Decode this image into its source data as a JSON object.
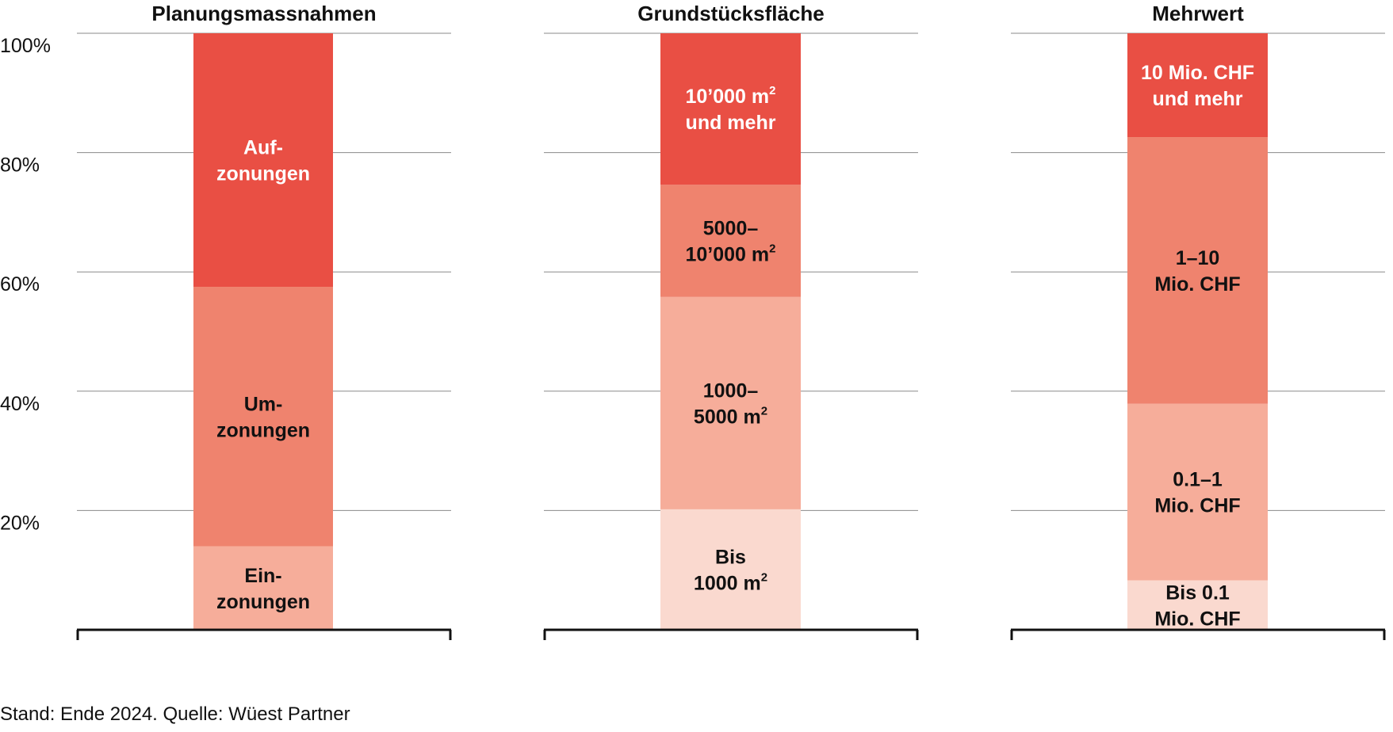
{
  "chart_data": {
    "type": "bar",
    "stacked": true,
    "unit": "%",
    "ylim": [
      0,
      100
    ],
    "yticks": [
      "20%",
      "40%",
      "60%",
      "80%",
      "100%"
    ],
    "grid": true,
    "panels": [
      {
        "title": "Planungsmassnahmen",
        "segments": [
          {
            "lines": [
              [
                "Ein-"
              ],
              [
                "zonungen"
              ]
            ],
            "from": 0,
            "to": 14,
            "color": "#f6ad9a",
            "text_color": "#111111"
          },
          {
            "lines": [
              [
                "Um-"
              ],
              [
                "zonungen"
              ]
            ],
            "from": 14,
            "to": 57.5,
            "color": "#ef836e",
            "text_color": "#111111"
          },
          {
            "lines": [
              [
                "Auf-"
              ],
              [
                "zonungen"
              ]
            ],
            "from": 57.5,
            "to": 100,
            "color": "#e94f44",
            "text_color": "#ffffff"
          }
        ]
      },
      {
        "title": "Grundstücksfläche",
        "segments": [
          {
            "lines": [
              [
                "Bis"
              ],
              [
                "1000 m",
                "2"
              ]
            ],
            "from": 0,
            "to": 20.2,
            "color": "#fad9cf",
            "text_color": "#111111"
          },
          {
            "lines": [
              [
                "1000–"
              ],
              [
                "5000 m",
                "2"
              ]
            ],
            "from": 20.2,
            "to": 55.8,
            "color": "#f6ad9a",
            "text_color": "#111111"
          },
          {
            "lines": [
              [
                "5000–"
              ],
              [
                "10’000 m",
                "2"
              ]
            ],
            "from": 55.8,
            "to": 74.6,
            "color": "#ef836e",
            "text_color": "#111111"
          },
          {
            "lines": [
              [
                "10’000 m",
                "2"
              ],
              [
                "und mehr"
              ]
            ],
            "from": 74.6,
            "to": 100,
            "color": "#e94f44",
            "text_color": "#ffffff"
          }
        ]
      },
      {
        "title": "Mehrwert",
        "segments": [
          {
            "lines": [
              [
                "Bis 0.1"
              ],
              [
                "Mio. CHF"
              ]
            ],
            "from": 0,
            "to": 8.3,
            "color": "#fad9cf",
            "text_color": "#111111"
          },
          {
            "lines": [
              [
                "0.1–1"
              ],
              [
                "Mio. CHF"
              ]
            ],
            "from": 8.3,
            "to": 37.9,
            "color": "#f6ad9a",
            "text_color": "#111111"
          },
          {
            "lines": [
              [
                "1–10"
              ],
              [
                "Mio. CHF"
              ]
            ],
            "from": 37.9,
            "to": 82.6,
            "color": "#ef836e",
            "text_color": "#111111"
          },
          {
            "lines": [
              [
                "10 Mio. CHF"
              ],
              [
                "und mehr"
              ]
            ],
            "from": 82.6,
            "to": 100,
            "color": "#e94f44",
            "text_color": "#ffffff"
          }
        ]
      }
    ]
  },
  "source_note": "Stand: Ende 2024. Quelle: Wüest Partner"
}
